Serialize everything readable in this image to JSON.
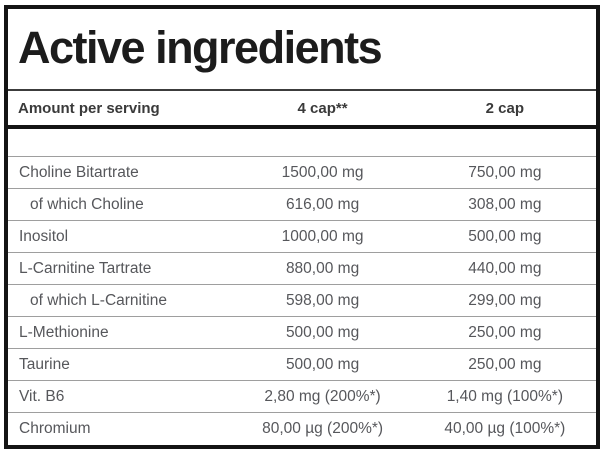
{
  "title": "Active ingredients",
  "header": {
    "col_ingredient": "Amount per serving",
    "col_4cap": "4 cap**",
    "col_2cap": "2 cap"
  },
  "rows": [
    {
      "name": "Choline Bitartrate",
      "indent": false,
      "per4": "1500,00 mg",
      "per2": "750,00 mg"
    },
    {
      "name": "of which Choline",
      "indent": true,
      "per4": "616,00 mg",
      "per2": "308,00 mg"
    },
    {
      "name": "Inositol",
      "indent": false,
      "per4": "1000,00 mg",
      "per2": "500,00 mg"
    },
    {
      "name": "L-Carnitine Tartrate",
      "indent": false,
      "per4": "880,00 mg",
      "per2": "440,00 mg"
    },
    {
      "name": "of which L-Carnitine",
      "indent": true,
      "per4": "598,00 mg",
      "per2": "299,00 mg"
    },
    {
      "name": "L-Methionine",
      "indent": false,
      "per4": "500,00 mg",
      "per2": "250,00 mg"
    },
    {
      "name": "Taurine",
      "indent": false,
      "per4": "500,00 mg",
      "per2": "250,00 mg"
    },
    {
      "name": "Vit. B6",
      "indent": false,
      "per4": "2,80 mg (200%*)",
      "per2": "1,40 mg (100%*)"
    },
    {
      "name": "Chromium",
      "indent": false,
      "per4": "80,00 µg (200%*)",
      "per2": "40,00 µg (100%*)"
    }
  ],
  "colors": {
    "frame": "#141414",
    "separator": "#9e9e9e",
    "title_text": "#1c1c1c",
    "header_text": "#3a3a3a",
    "cell_text": "#56575b"
  }
}
